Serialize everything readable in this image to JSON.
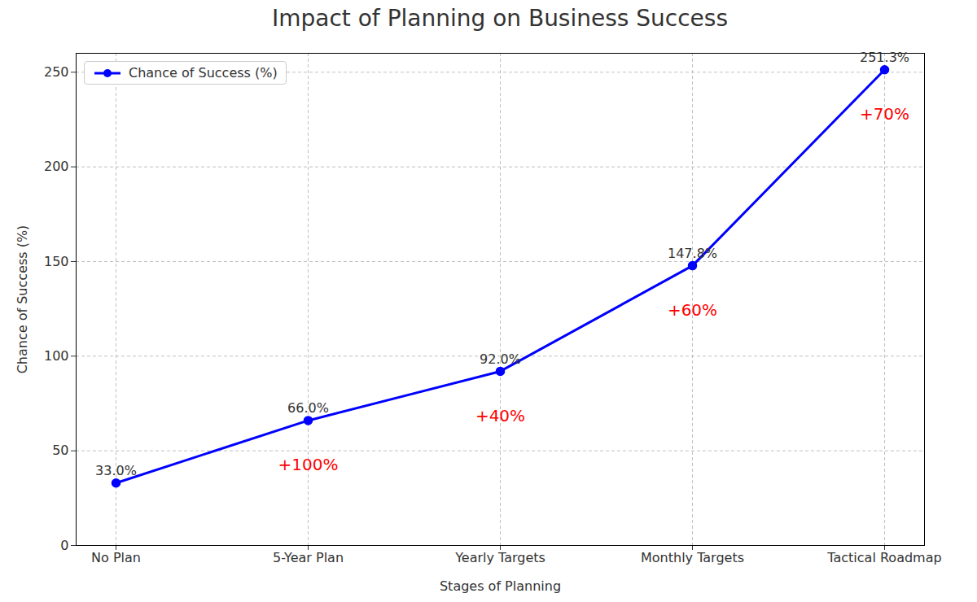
{
  "chart_data": {
    "type": "line",
    "title": "Impact of Planning on Business Success",
    "x_label": "Stages of Planning",
    "y_label": "Chance of Success (%)",
    "categories": [
      "No Plan",
      "5-Year Plan",
      "Yearly Targets",
      "Monthly Targets",
      "Tactical Roadmap"
    ],
    "series": [
      {
        "name": "Chance of Success (%)",
        "color": "#0000ff",
        "marker": "circle",
        "values": [
          33.0,
          66.0,
          92.0,
          147.8,
          251.3
        ],
        "value_labels": [
          "33.0%",
          "66.0%",
          "92.0%",
          "147.8%",
          "251.3%"
        ]
      }
    ],
    "data_labels": true,
    "ylim": [
      0,
      260
    ],
    "yticks": [
      0,
      50,
      100,
      150,
      200,
      250
    ],
    "grid": true,
    "legend": "upper left",
    "annotations": [
      {
        "text": "+100%",
        "category": "5-Year Plan",
        "color": "#ff0000"
      },
      {
        "text": "+40%",
        "category": "Yearly Targets",
        "color": "#ff0000"
      },
      {
        "text": "+60%",
        "category": "Monthly Targets",
        "color": "#ff0000"
      },
      {
        "text": "+70%",
        "category": "Tactical Roadmap",
        "color": "#ff0000"
      }
    ]
  }
}
